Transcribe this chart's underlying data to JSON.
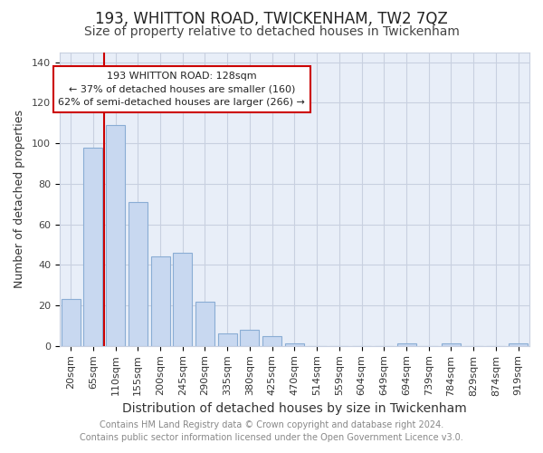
{
  "title": "193, WHITTON ROAD, TWICKENHAM, TW2 7QZ",
  "subtitle": "Size of property relative to detached houses in Twickenham",
  "xlabel": "Distribution of detached houses by size in Twickenham",
  "ylabel": "Number of detached properties",
  "bar_labels": [
    "20sqm",
    "65sqm",
    "110sqm",
    "155sqm",
    "200sqm",
    "245sqm",
    "290sqm",
    "335sqm",
    "380sqm",
    "425sqm",
    "470sqm",
    "514sqm",
    "559sqm",
    "604sqm",
    "649sqm",
    "694sqm",
    "739sqm",
    "784sqm",
    "829sqm",
    "874sqm",
    "919sqm"
  ],
  "bar_values": [
    23,
    98,
    109,
    71,
    44,
    46,
    22,
    6,
    8,
    5,
    1,
    0,
    0,
    0,
    0,
    1,
    0,
    1,
    0,
    0,
    1
  ],
  "bar_color": "#c8d8f0",
  "bar_edge_color": "#8aadd4",
  "reference_line_x": 1.5,
  "reference_line_color": "#cc0000",
  "ylim": [
    0,
    145
  ],
  "yticks": [
    0,
    20,
    40,
    60,
    80,
    100,
    120,
    140
  ],
  "annotation_title": "193 WHITTON ROAD: 128sqm",
  "annotation_line1": "← 37% of detached houses are smaller (160)",
  "annotation_line2": "62% of semi-detached houses are larger (266) →",
  "footer1": "Contains HM Land Registry data © Crown copyright and database right 2024.",
  "footer2": "Contains public sector information licensed under the Open Government Licence v3.0.",
  "title_fontsize": 12,
  "subtitle_fontsize": 10,
  "xlabel_fontsize": 10,
  "ylabel_fontsize": 9,
  "tick_fontsize": 8,
  "ann_fontsize": 8,
  "footer_fontsize": 7,
  "background_color": "#ffffff",
  "plot_bg_color": "#e8eef8",
  "grid_color": "#c8d0e0"
}
